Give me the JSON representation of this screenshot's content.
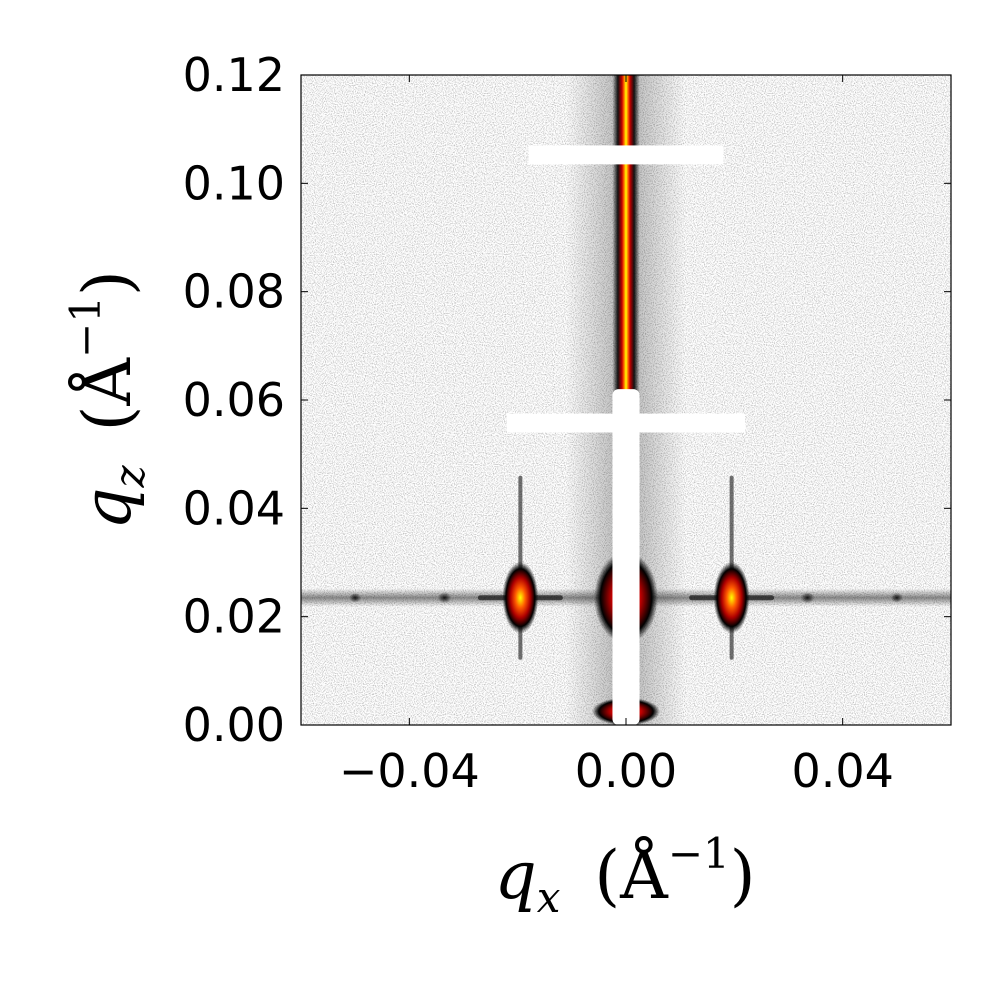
{
  "chart_data": {
    "type": "heatmap",
    "title": "",
    "xlabel": {
      "symbol": "q",
      "subscript": "x",
      "unit": "(Å",
      "exponent": "−1",
      "close": ")"
    },
    "ylabel": {
      "symbol": "q",
      "subscript": "z",
      "unit": "(Å",
      "exponent": "−1",
      "close": ")"
    },
    "xlim": [
      -0.06,
      0.06
    ],
    "ylim": [
      0.0,
      0.12
    ],
    "x_ticks": [
      {
        "value": -0.04,
        "label": "−0.04"
      },
      {
        "value": 0.0,
        "label": "0.00"
      },
      {
        "value": 0.04,
        "label": "0.04"
      }
    ],
    "y_ticks": [
      {
        "value": 0.0,
        "label": "0.00"
      },
      {
        "value": 0.02,
        "label": "0.02"
      },
      {
        "value": 0.04,
        "label": "0.04"
      },
      {
        "value": 0.06,
        "label": "0.06"
      },
      {
        "value": 0.08,
        "label": "0.08"
      },
      {
        "value": 0.1,
        "label": "0.10"
      },
      {
        "value": 0.12,
        "label": "0.12"
      }
    ],
    "colormap": [
      "#ffffff",
      "#000000",
      "#cc0000",
      "#ff4400",
      "#ffff00"
    ],
    "grid": false,
    "features": {
      "specular_rod": {
        "qx": 0.0,
        "qz_range": [
          0.0,
          0.12
        ],
        "width": 0.005
      },
      "yoneda_line_qz": 0.0235,
      "bragg_peaks": [
        {
          "qx": -0.0195,
          "qz": 0.0235,
          "intensity": 1.0
        },
        {
          "qx": 0.0195,
          "qz": 0.0235,
          "intensity": 1.0
        },
        {
          "qx": -0.0335,
          "qz": 0.0235,
          "intensity": 0.35
        },
        {
          "qx": 0.0335,
          "qz": 0.0235,
          "intensity": 0.35
        },
        {
          "qx": -0.05,
          "qz": 0.0235,
          "intensity": 0.2
        },
        {
          "qx": 0.05,
          "qz": 0.0235,
          "intensity": 0.2
        }
      ],
      "detector_gaps_qz": [
        {
          "qz_range": [
            0.1035,
            0.107
          ],
          "qx_range": [
            -0.018,
            0.018
          ]
        },
        {
          "qz_range": [
            0.054,
            0.0575
          ],
          "qx_range": [
            -0.022,
            0.022
          ]
        }
      ],
      "beamstop": {
        "qx_range": [
          -0.0025,
          0.0025
        ],
        "qz_range": [
          0.0,
          0.062
        ]
      }
    }
  }
}
